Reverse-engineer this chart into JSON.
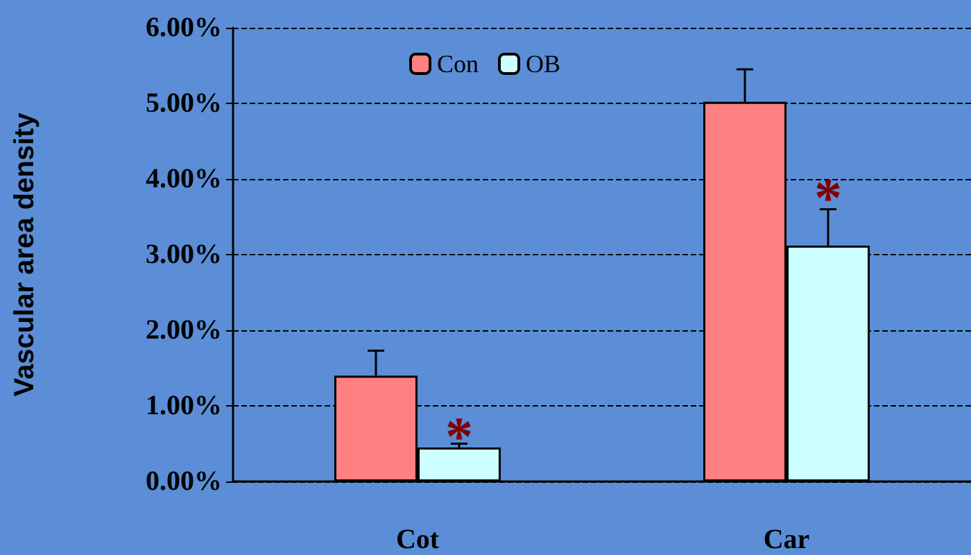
{
  "chart_data": {
    "type": "bar",
    "ylabel": "Vascular area density",
    "categories": [
      "Cot",
      "Car"
    ],
    "series": [
      {
        "name": "Con",
        "color": "#ff8080",
        "values": [
          1.4,
          5.02
        ],
        "errors": [
          [
            1.4,
            1.73
          ],
          [
            5.02,
            5.45
          ]
        ]
      },
      {
        "name": "OB",
        "color": "#ccffff",
        "values": [
          0.45,
          3.12
        ],
        "errors": [
          [
            0.45,
            0.5
          ],
          [
            3.12,
            3.6
          ]
        ]
      }
    ],
    "ylim": [
      0,
      6
    ],
    "yticks": [
      {
        "value": 0,
        "label": "0.00%"
      },
      {
        "value": 1,
        "label": "1.00%"
      },
      {
        "value": 2,
        "label": "2.00%"
      },
      {
        "value": 3,
        "label": "3.00%"
      },
      {
        "value": 4,
        "label": "4.00%"
      },
      {
        "value": 5,
        "label": "5.00%"
      },
      {
        "value": 6,
        "label": "6.00%"
      }
    ],
    "annotations": [
      {
        "text": "*",
        "x": "Cot",
        "y": 0.6
      },
      {
        "text": "*",
        "x": "Car",
        "y": 3.75
      }
    ],
    "grid": "y",
    "legend": "top"
  }
}
